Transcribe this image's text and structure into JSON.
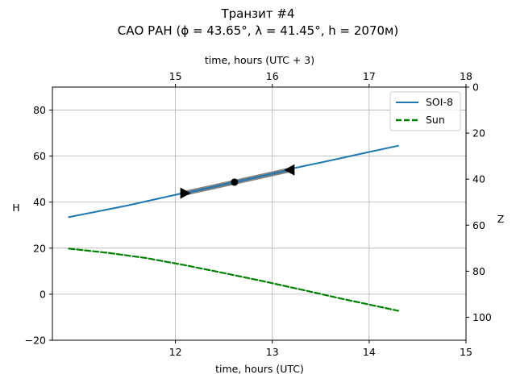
{
  "chart_data": {
    "type": "line",
    "title_line1": "Транзит #4",
    "title_line2": "САО РАН (ϕ = 43.65°, λ = 41.45°, h = 2070м)",
    "xlabel_bottom": "time, hours (UTC)",
    "xlabel_top": "time, hours (UTC + 3)",
    "ylabel_left": "H",
    "ylabel_right": "Z",
    "xlim": [
      10.73,
      15.0
    ],
    "ylim": [
      -20,
      90
    ],
    "zlim_right": [
      110,
      0
    ],
    "x_ticks": [
      12,
      13,
      14,
      15
    ],
    "x_tick_labels": [
      "12",
      "13",
      "14",
      "15"
    ],
    "top_ticks": [
      15,
      16,
      17,
      18
    ],
    "top_tick_labels": [
      "15",
      "16",
      "17",
      "18"
    ],
    "y_ticks": [
      -20,
      0,
      20,
      40,
      60,
      80
    ],
    "y_tick_labels": [
      "−20",
      "0",
      "20",
      "40",
      "60",
      "80"
    ],
    "z_ticks": [
      0,
      20,
      40,
      60,
      80,
      100
    ],
    "z_tick_labels": [
      "0",
      "20",
      "40",
      "60",
      "80",
      "100"
    ],
    "grid": true,
    "legend_position": "top-right",
    "series": [
      {
        "name": "SOI-8",
        "style": "solid",
        "color": "#1f77b4",
        "x": [
          10.9,
          11.5,
          12.0,
          12.5,
          13.0,
          13.5,
          14.0,
          14.3
        ],
        "y": [
          33.5,
          38.5,
          43.2,
          48.0,
          52.8,
          57.2,
          61.8,
          64.5
        ]
      },
      {
        "name": "Sun",
        "style": "dashed",
        "color": "#008000",
        "x": [
          10.9,
          11.3,
          11.7,
          12.1,
          12.5,
          12.9,
          13.3,
          13.7,
          14.1,
          14.3
        ],
        "y": [
          19.8,
          18.0,
          15.7,
          12.6,
          9.2,
          5.7,
          2.0,
          -1.8,
          -5.4,
          -7.2
        ]
      }
    ],
    "transit": {
      "x": [
        12.1,
        13.18
      ],
      "y": [
        43.9,
        54.0
      ],
      "color": "#808080",
      "start_marker": {
        "x": 12.1,
        "y": 43.9,
        "shape": "triangle-right"
      },
      "mid_marker": {
        "x": 12.61,
        "y": 48.7,
        "shape": "circle"
      },
      "end_marker": {
        "x": 13.18,
        "y": 54.0,
        "shape": "triangle-left"
      }
    }
  }
}
